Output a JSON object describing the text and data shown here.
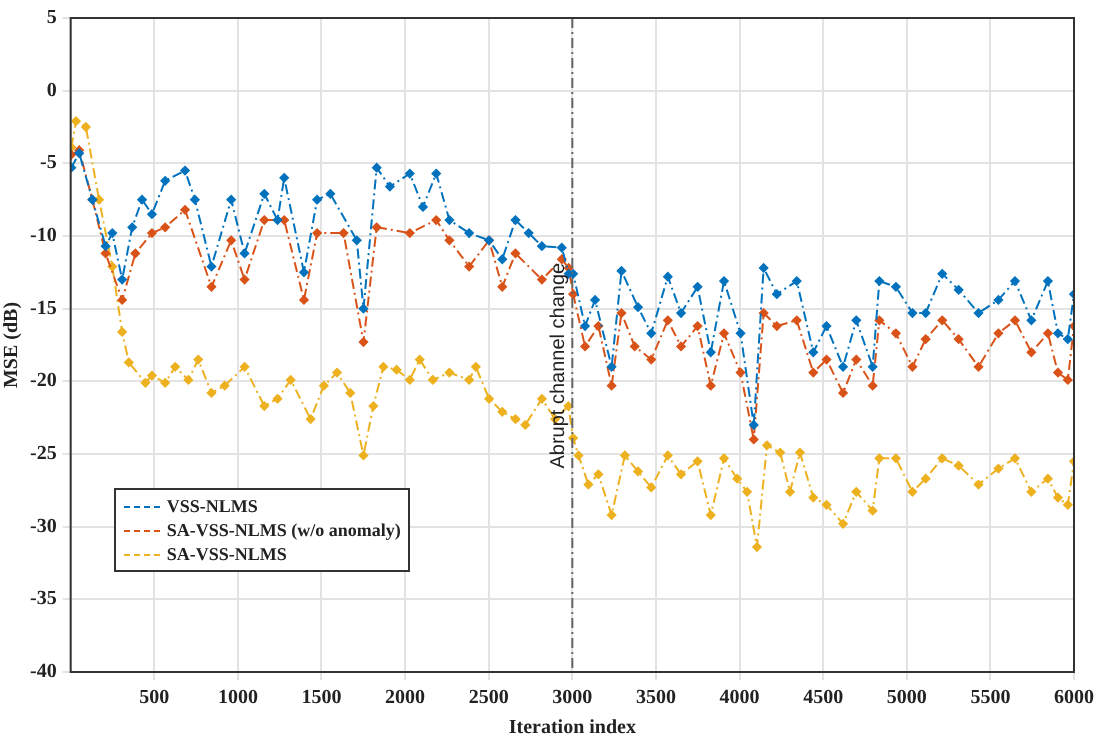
{
  "chart_data": {
    "type": "line",
    "xlabel": "Iteration index",
    "ylabel": "MSE (dB)",
    "xlim": [
      0,
      6000
    ],
    "xticks": [
      500,
      1000,
      1500,
      2000,
      2500,
      3000,
      3500,
      4000,
      4500,
      5000,
      5500,
      6000
    ],
    "ylim": [
      -40,
      5
    ],
    "yticks": [
      -40,
      -35,
      -30,
      -25,
      -20,
      -15,
      -10,
      -5,
      0,
      5
    ],
    "grid": true,
    "legend": "bottom left",
    "line_style": "dashed",
    "marker": "diamond",
    "ref_lines": [
      {
        "axis": "x",
        "value": 3000,
        "label": "Abrupt channel change",
        "color": "#666666",
        "line_style": "dashed"
      }
    ],
    "series": [
      {
        "name": "VSS-NLMS",
        "color": "#0072bd",
        "x": [
          4,
          51,
          130,
          209,
          249,
          308,
          368,
          427,
          486,
          565,
          684,
          743,
          842,
          960,
          1040,
          1158,
          1237,
          1277,
          1395,
          1474,
          1553,
          1711,
          1751,
          1830,
          1909,
          2028,
          2107,
          2186,
          2265,
          2383,
          2502,
          2581,
          2660,
          2739,
          2818,
          2937,
          2978,
          3005,
          3076,
          3136,
          3235,
          3294,
          3393,
          3472,
          3571,
          3650,
          3749,
          3828,
          3907,
          4006,
          4085,
          4144,
          4223,
          4342,
          4441,
          4520,
          4619,
          4698,
          4796,
          4836,
          4935,
          5034,
          5113,
          5212,
          5310,
          5429,
          5548,
          5647,
          5745,
          5844,
          5904,
          5963,
          6000
        ],
        "values": [
          -5.3,
          -4.3,
          -7.5,
          -10.7,
          -9.8,
          -13,
          -9.4,
          -7.5,
          -8.5,
          -6.2,
          -5.5,
          -7.5,
          -12.1,
          -7.5,
          -11.2,
          -7.1,
          -8.9,
          -6,
          -12.5,
          -7.5,
          -7.1,
          -10.3,
          -15,
          -5.3,
          -6.6,
          -5.7,
          -8,
          -5.7,
          -8.9,
          -9.8,
          -10.3,
          -11.6,
          -8.9,
          -9.8,
          -10.7,
          -10.8,
          -12.6,
          -12.6,
          -16.2,
          -14.4,
          -19,
          -12.4,
          -14.9,
          -16.7,
          -12.8,
          -15.3,
          -13.5,
          -18,
          -13.1,
          -16.7,
          -23,
          -12.2,
          -14,
          -13.1,
          -18,
          -16.2,
          -19,
          -15.8,
          -19,
          -13.1,
          -13.5,
          -15.3,
          -15.3,
          -12.6,
          -13.7,
          -15.3,
          -14.4,
          -13.1,
          -15.8,
          -13.1,
          -16.7,
          -17.1,
          -14
        ]
      },
      {
        "name": "SA-VSS-NLMS (w/o anomaly)",
        "color": "#d95319",
        "x": [
          4,
          51,
          130,
          209,
          308,
          387,
          486,
          565,
          684,
          842,
          960,
          1040,
          1158,
          1277,
          1395,
          1474,
          1632,
          1751,
          1830,
          2028,
          2186,
          2265,
          2383,
          2502,
          2581,
          2660,
          2818,
          2937,
          2978,
          3005,
          3076,
          3156,
          3235,
          3294,
          3373,
          3472,
          3571,
          3650,
          3749,
          3828,
          3907,
          4006,
          4085,
          4144,
          4223,
          4342,
          4441,
          4520,
          4619,
          4698,
          4796,
          4836,
          4935,
          5034,
          5113,
          5212,
          5310,
          5429,
          5548,
          5647,
          5745,
          5844,
          5904,
          5963,
          6000
        ],
        "values": [
          -4.4,
          -4.1,
          -7.5,
          -11.2,
          -14.4,
          -11.2,
          -9.8,
          -9.4,
          -8.2,
          -13.5,
          -10.3,
          -13,
          -8.9,
          -8.9,
          -14.4,
          -9.8,
          -9.8,
          -17.3,
          -9.4,
          -9.8,
          -8.9,
          -10.3,
          -12.1,
          -10.3,
          -13.5,
          -11.2,
          -13,
          -11.6,
          -12.2,
          -14,
          -17.6,
          -16.2,
          -20.3,
          -15.3,
          -17.6,
          -18.5,
          -15.8,
          -17.6,
          -16.2,
          -20.3,
          -16.7,
          -19.4,
          -24,
          -15.3,
          -16.2,
          -15.8,
          -19.4,
          -18.5,
          -20.8,
          -18.5,
          -20.3,
          -15.8,
          -16.7,
          -19,
          -17.1,
          -15.8,
          -17.1,
          -19,
          -16.7,
          -15.8,
          -18,
          -16.7,
          -19.4,
          -19.9,
          -16.2
        ]
      },
      {
        "name": "SA-VSS-NLMS",
        "color": "#edb120",
        "x": [
          4,
          32,
          91,
          170,
          249,
          308,
          348,
          447,
          486,
          565,
          625,
          704,
          763,
          842,
          921,
          1040,
          1158,
          1237,
          1316,
          1435,
          1514,
          1593,
          1672,
          1751,
          1810,
          1870,
          1949,
          2028,
          2087,
          2166,
          2265,
          2383,
          2423,
          2502,
          2581,
          2660,
          2719,
          2818,
          2897,
          2976,
          3005,
          3037,
          3096,
          3156,
          3235,
          3314,
          3393,
          3472,
          3571,
          3650,
          3749,
          3828,
          3907,
          3986,
          4045,
          4104,
          4164,
          4243,
          4302,
          4361,
          4441,
          4520,
          4619,
          4698,
          4796,
          4836,
          4935,
          5034,
          5113,
          5212,
          5310,
          5429,
          5548,
          5647,
          5745,
          5844,
          5904,
          5963,
          6000
        ],
        "values": [
          -3.9,
          -2.1,
          -2.5,
          -7.5,
          -12.1,
          -16.6,
          -18.7,
          -20.1,
          -19.6,
          -20.1,
          -19,
          -19.9,
          -18.5,
          -20.8,
          -20.3,
          -19,
          -21.7,
          -21.2,
          -19.9,
          -22.6,
          -20.3,
          -19.4,
          -20.8,
          -25.1,
          -21.7,
          -19,
          -19.2,
          -19.9,
          -18.5,
          -19.9,
          -19.4,
          -19.9,
          -19,
          -21.2,
          -22.1,
          -22.6,
          -23,
          -21.2,
          -22.6,
          -21.7,
          -23.9,
          -25.1,
          -27.1,
          -26.4,
          -29.2,
          -25.1,
          -26.2,
          -27.3,
          -25.1,
          -26.4,
          -25.5,
          -29.2,
          -25.3,
          -26.7,
          -27.6,
          -31.4,
          -24.4,
          -24.9,
          -27.6,
          -24.9,
          -28,
          -28.5,
          -29.8,
          -27.6,
          -28.9,
          -25.3,
          -25.3,
          -27.6,
          -26.7,
          -25.3,
          -25.8,
          -27.1,
          -26,
          -25.3,
          -27.6,
          -26.7,
          -28,
          -28.5,
          -25.5
        ]
      }
    ]
  }
}
